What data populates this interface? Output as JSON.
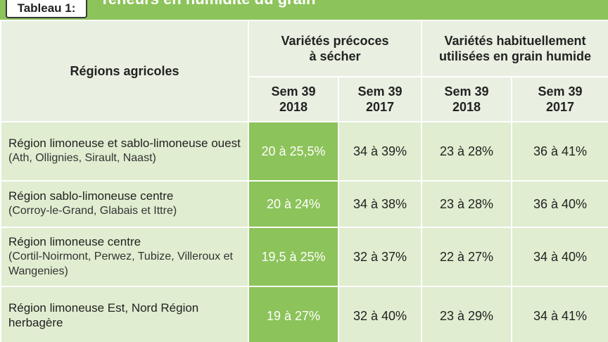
{
  "header": {
    "tag": "Tableau 1:",
    "title": "Teneurs en humidité du grain"
  },
  "table": {
    "region_header": "Régions agricoles",
    "group_headers": [
      {
        "line1": "Variétés précoces",
        "line2": "à sécher"
      },
      {
        "line1": "Variétés habituellement",
        "line2": "utilisées en grain humide"
      }
    ],
    "sub_headers": [
      {
        "line1": "Sem 39",
        "line2": "2018"
      },
      {
        "line1": "Sem 39",
        "line2": "2017"
      },
      {
        "line1": "Sem 39",
        "line2": "2018"
      },
      {
        "line1": "Sem 39",
        "line2": "2017"
      }
    ],
    "rows": [
      {
        "region": "Région limoneuse et sablo-limoneuse ouest",
        "sub": "(Ath,  Ollignies, Sirault, Naast)",
        "values": [
          "20 à 25,5%",
          "34 à 39%",
          "23 à 28%",
          "36 à 41%"
        ]
      },
      {
        "region": "Région sablo-limoneuse centre",
        "sub": "(Corroy-le-Grand, Glabais et Ittre)",
        "values": [
          "20 à 24%",
          "34 à 38%",
          "23 à 28%",
          "36 à 40%"
        ]
      },
      {
        "region": "Région limoneuse centre",
        "sub": "(Cortil-Noirmont, Perwez, Tubize, Villeroux et Wangenies)",
        "values": [
          "19,5 à 25%",
          "32 à 37%",
          "22 à 27%",
          "34 à 40%"
        ]
      },
      {
        "region": "Région limoneuse Est, Nord Région herbagère",
        "sub": "",
        "values": [
          "19 à 27%",
          "32 à 40%",
          "23 à 29%",
          "34 à 41%"
        ]
      }
    ]
  },
  "colors": {
    "accent_green": "#8cc35a",
    "light_green": "#e0edd0",
    "header_bg": "#e9efe1"
  }
}
